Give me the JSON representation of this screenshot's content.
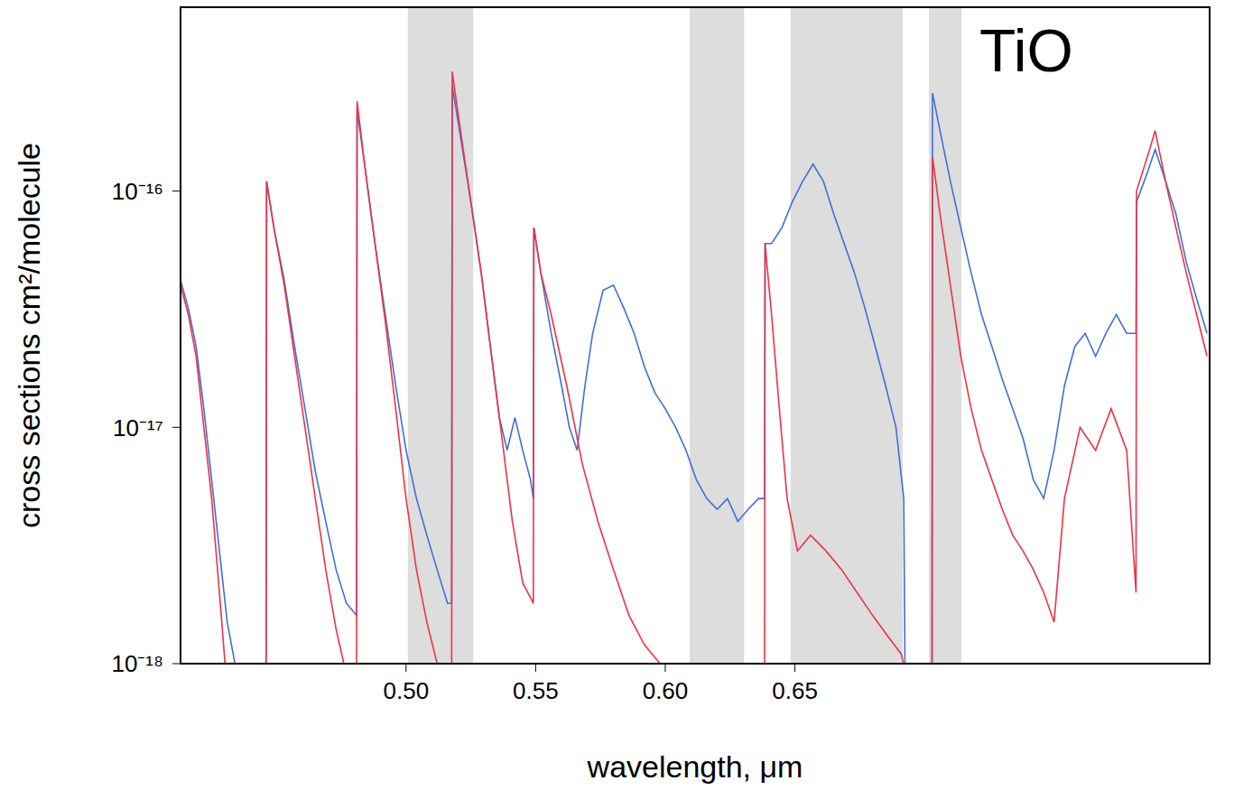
{
  "chart_data": {
    "type": "line",
    "title": "TiO",
    "x_label": "wavelength, μm",
    "y_label": "cross sections cm²/molecule",
    "log": "y",
    "xlim": [
      0.413,
      0.81
    ],
    "xticks": [
      {
        "value": 0.5,
        "label": "0.50"
      },
      {
        "value": 0.55,
        "label": "0.55"
      },
      {
        "value": 0.6,
        "label": "0.60"
      },
      {
        "value": 0.65,
        "label": "0.65"
      }
    ],
    "ylim": [
      1e-18,
      6e-16
    ],
    "yticks": [
      {
        "value": 1e-18,
        "label": "10⁻¹⁸"
      },
      {
        "value": 1e-17,
        "label": "10⁻¹⁷"
      },
      {
        "value": 1e-16,
        "label": "10⁻¹⁶"
      }
    ],
    "shaded_ranges": [
      [
        0.5007,
        0.5259
      ],
      [
        0.6094,
        0.6304
      ],
      [
        0.6483,
        0.6916
      ],
      [
        0.7017,
        0.7143
      ]
    ],
    "series": [
      {
        "color": "#3f6fd8",
        "x": [
          0.413,
          0.416,
          0.419,
          0.422,
          0.425,
          0.428,
          0.431,
          0.434,
          0.446,
          0.4462,
          0.449,
          0.453,
          0.457,
          0.461,
          0.465,
          0.469,
          0.473,
          0.477,
          0.4809,
          0.4811,
          0.484,
          0.488,
          0.492,
          0.496,
          0.5,
          0.504,
          0.508,
          0.512,
          0.516,
          0.5176,
          0.5178,
          0.521,
          0.525,
          0.529,
          0.533,
          0.536,
          0.539,
          0.542,
          0.545,
          0.548,
          0.5491,
          0.5493,
          0.552,
          0.556,
          0.56,
          0.563,
          0.566,
          0.569,
          0.572,
          0.576,
          0.58,
          0.584,
          0.588,
          0.592,
          0.596,
          0.6,
          0.604,
          0.608,
          0.612,
          0.616,
          0.62,
          0.624,
          0.628,
          0.632,
          0.636,
          0.6383,
          0.6385,
          0.641,
          0.645,
          0.649,
          0.653,
          0.657,
          0.661,
          0.665,
          0.669,
          0.673,
          0.677,
          0.681,
          0.685,
          0.689,
          0.692,
          0.6925,
          0.7029,
          0.7031,
          0.706,
          0.71,
          0.714,
          0.718,
          0.722,
          0.726,
          0.73,
          0.734,
          0.738,
          0.742,
          0.746,
          0.75,
          0.754,
          0.758,
          0.762,
          0.766,
          0.77,
          0.774,
          0.778,
          0.7816,
          0.7818,
          0.786,
          0.789,
          0.793,
          0.797,
          0.801,
          0.805,
          0.809
        ],
        "values": [
          4.2e-17,
          3.2e-17,
          2.2e-17,
          1.2e-17,
          6e-18,
          3e-18,
          1.5e-18,
          1e-18,
          1e-18,
          1.1e-16,
          7e-17,
          4.2e-17,
          2.2e-17,
          1.2e-17,
          6.5e-18,
          4e-18,
          2.5e-18,
          1.8e-18,
          1.6e-18,
          2.2e-16,
          1.3e-16,
          6e-17,
          3e-17,
          1.5e-17,
          8e-18,
          5e-18,
          3.5e-18,
          2.5e-18,
          1.8e-18,
          1.8e-18,
          2.8e-16,
          1.7e-16,
          9e-17,
          4.5e-17,
          2e-17,
          1.1e-17,
          8e-18,
          1.1e-17,
          8e-18,
          6e-18,
          5e-18,
          7e-17,
          4.5e-17,
          2.5e-17,
          1.5e-17,
          1e-17,
          8e-18,
          1.5e-17,
          2.5e-17,
          3.8e-17,
          4e-17,
          3.2e-17,
          2.5e-17,
          1.8e-17,
          1.4e-17,
          1.2e-17,
          1e-17,
          8e-18,
          6e-18,
          5e-18,
          4.5e-18,
          5e-18,
          4e-18,
          4.5e-18,
          5e-18,
          5e-18,
          6e-17,
          6e-17,
          7e-17,
          9e-17,
          1.1e-16,
          1.3e-16,
          1.1e-16,
          8e-17,
          6e-17,
          4.5e-17,
          3.2e-17,
          2.2e-17,
          1.5e-17,
          1e-17,
          5e-18,
          9e-19,
          9e-19,
          2.6e-16,
          1.8e-16,
          1.1e-16,
          7e-17,
          4.5e-17,
          3e-17,
          2.2e-17,
          1.6e-17,
          1.2e-17,
          9e-18,
          6e-18,
          5e-18,
          8e-18,
          1.5e-17,
          2.2e-17,
          2.5e-17,
          2e-17,
          2.5e-17,
          3e-17,
          2.5e-17,
          2.5e-17,
          9e-17,
          1.2e-16,
          1.5e-16,
          1.1e-16,
          8e-17,
          5e-17,
          3.5e-17,
          2.5e-17
        ]
      },
      {
        "color": "#ee3344",
        "x": [
          0.413,
          0.416,
          0.419,
          0.422,
          0.425,
          0.428,
          0.4305,
          0.446,
          0.4462,
          0.449,
          0.453,
          0.457,
          0.461,
          0.465,
          0.469,
          0.473,
          0.476,
          0.4809,
          0.4811,
          0.484,
          0.488,
          0.492,
          0.496,
          0.5,
          0.504,
          0.508,
          0.512,
          0.514,
          0.5176,
          0.5178,
          0.521,
          0.525,
          0.529,
          0.533,
          0.537,
          0.541,
          0.545,
          0.5491,
          0.5493,
          0.552,
          0.556,
          0.562,
          0.568,
          0.574,
          0.58,
          0.586,
          0.592,
          0.598,
          0.604,
          0.6383,
          0.6385,
          0.641,
          0.644,
          0.647,
          0.651,
          0.656,
          0.662,
          0.668,
          0.674,
          0.68,
          0.686,
          0.691,
          0.693,
          0.7029,
          0.7031,
          0.706,
          0.71,
          0.714,
          0.718,
          0.722,
          0.726,
          0.73,
          0.734,
          0.738,
          0.742,
          0.746,
          0.75,
          0.754,
          0.76,
          0.766,
          0.772,
          0.778,
          0.7816,
          0.7818,
          0.786,
          0.789,
          0.793,
          0.797,
          0.801,
          0.805,
          0.809
        ],
        "values": [
          4e-17,
          3e-17,
          2e-17,
          1e-17,
          5e-18,
          2e-18,
          9e-19,
          9e-19,
          1.1e-16,
          7e-17,
          4e-17,
          2e-17,
          1e-17,
          5e-18,
          2.5e-18,
          1.4e-18,
          1e-18,
          9e-19,
          2.4e-16,
          1.3e-16,
          6e-17,
          2.8e-17,
          1.2e-17,
          5e-18,
          2.5e-18,
          1.5e-18,
          1e-18,
          9e-19,
          9e-19,
          3.2e-16,
          1.8e-16,
          9e-17,
          4.5e-17,
          2e-17,
          9e-18,
          4e-18,
          2.2e-18,
          1.8e-18,
          7e-17,
          4.5e-17,
          3e-17,
          1.5e-17,
          7e-18,
          4e-18,
          2.5e-18,
          1.6e-18,
          1.2e-18,
          1e-18,
          9e-19,
          9e-19,
          6e-17,
          3e-17,
          1.2e-17,
          5e-18,
          3e-18,
          3.5e-18,
          3e-18,
          2.5e-18,
          2e-18,
          1.6e-18,
          1.3e-18,
          1.1e-18,
          9e-19,
          9e-19,
          1.4e-16,
          8e-17,
          4e-17,
          2e-17,
          1.2e-17,
          8e-18,
          6e-18,
          4.5e-18,
          3.5e-18,
          3e-18,
          2.5e-18,
          2e-18,
          1.5e-18,
          5e-18,
          1e-17,
          8e-18,
          1.2e-17,
          8e-18,
          2e-18,
          1e-16,
          1.4e-16,
          1.8e-16,
          1.1e-16,
          7e-17,
          4.5e-17,
          3e-17,
          2e-17
        ]
      }
    ]
  }
}
